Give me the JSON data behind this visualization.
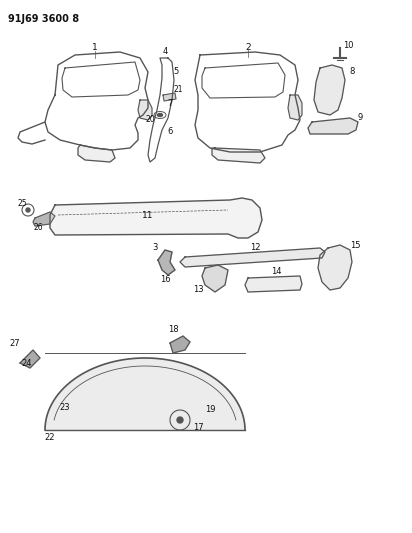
{
  "title": "91J69 3600 8",
  "bg_color": "#ffffff",
  "line_color": "#555555",
  "text_color": "#111111",
  "figsize": [
    4.12,
    5.33
  ],
  "dpi": 100
}
